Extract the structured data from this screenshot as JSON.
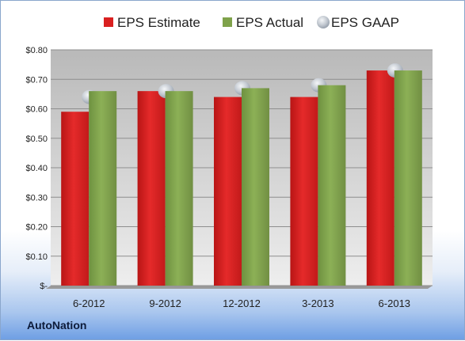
{
  "company": "AutoNation",
  "chart_data": {
    "type": "bar",
    "categories": [
      "6-2012",
      "9-2012",
      "12-2012",
      "3-2013",
      "6-2013"
    ],
    "series": [
      {
        "name": "EPS Estimate",
        "values": [
          0.59,
          0.66,
          0.64,
          0.64,
          0.73
        ],
        "color": "#d92020",
        "kind": "bar"
      },
      {
        "name": "EPS Actual",
        "values": [
          0.66,
          0.66,
          0.67,
          0.68,
          0.73
        ],
        "color": "#7fa24a",
        "kind": "bar"
      },
      {
        "name": "EPS GAAP",
        "values": [
          0.64,
          0.66,
          0.67,
          0.68,
          0.73
        ],
        "color": "#bfc6cf",
        "kind": "marker"
      }
    ],
    "yticks": [
      "$-",
      "$0.10",
      "$0.20",
      "$0.30",
      "$0.40",
      "$0.50",
      "$0.60",
      "$0.70",
      "$0.80"
    ],
    "ylim": [
      0,
      0.8
    ],
    "grid": true,
    "legend": "top"
  }
}
